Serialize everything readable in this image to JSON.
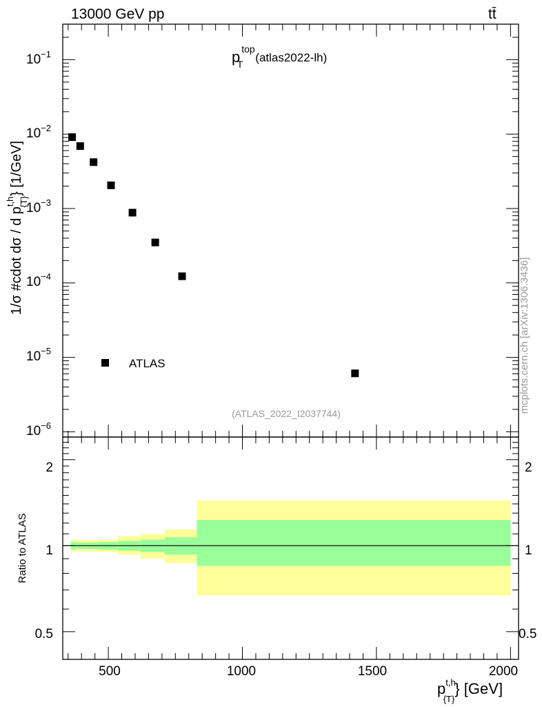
{
  "header": {
    "energy_label": "13000 GeV pp",
    "process_label": "tt̄",
    "side_label": "mcplots.cern.ch [arXiv:1306.3436]"
  },
  "main_plot": {
    "title_main": "p",
    "title_sup": "top",
    "title_sub": "T",
    "title_tag": "(atlas2022-lh)",
    "ylabel_pre": "1/σ #cdot dσ / d p",
    "ylabel_sup": "t,h",
    "ylabel_sub": "{T}",
    "ylabel_post": "} [1/GeV]",
    "analysis_label": "(ATLAS_2022_I2037744)",
    "legend_label": "ATLAS",
    "ytick_labels": [
      {
        "base": "10",
        "exp": "−1"
      },
      {
        "base": "10",
        "exp": "−2"
      },
      {
        "base": "10",
        "exp": "−3"
      },
      {
        "base": "10",
        "exp": "−4"
      },
      {
        "base": "10",
        "exp": "−5"
      },
      {
        "base": "10",
        "exp": "−6"
      }
    ]
  },
  "ratio_plot": {
    "ylabel": "Ratio to ATLAS",
    "ytick_labels_left": [
      "2",
      "1",
      "0.5"
    ],
    "ytick_labels_right": [
      "2",
      "1",
      "0.5"
    ]
  },
  "x_axis": {
    "tick_labels": [
      "500",
      "1000",
      "1500",
      "2000"
    ],
    "label_main": "p",
    "label_sup": "t,h",
    "label_sub": "{T}",
    "label_post": "} [GeV]"
  },
  "chart_data": {
    "type": "scatter",
    "xlabel": "p{T}t,h} [GeV]",
    "ylabel": "1/σ #cdot dσ / d p{T}t,h} [1/GeV]",
    "xlim": [
      330,
      2030
    ],
    "ylim": [
      8.5e-07,
      0.3
    ],
    "yscale": "log",
    "series": [
      {
        "name": "ATLAS",
        "color": "#000000",
        "marker": "square",
        "x": [
          365,
          395,
          445,
          510,
          590,
          675,
          775,
          1420
        ],
        "y": [
          0.0091,
          0.0069,
          0.0042,
          0.00205,
          0.00088,
          0.00035,
          0.000123,
          6.1e-06
        ]
      }
    ],
    "ratio": {
      "ylim": [
        0.4,
        2.4
      ],
      "yscale": "log",
      "bins": [
        {
          "x0": 360,
          "x1": 380,
          "inner": [
            0.97,
            1.03
          ],
          "outer": [
            0.95,
            1.05
          ]
        },
        {
          "x0": 380,
          "x1": 410,
          "inner": [
            0.975,
            1.025
          ],
          "outer": [
            0.955,
            1.045
          ]
        },
        {
          "x0": 410,
          "x1": 460,
          "inner": [
            0.975,
            1.025
          ],
          "outer": [
            0.955,
            1.045
          ]
        },
        {
          "x0": 460,
          "x1": 535,
          "inner": [
            0.97,
            1.03
          ],
          "outer": [
            0.95,
            1.05
          ]
        },
        {
          "x0": 535,
          "x1": 620,
          "inner": [
            0.96,
            1.04
          ],
          "outer": [
            0.93,
            1.08
          ]
        },
        {
          "x0": 620,
          "x1": 710,
          "inner": [
            0.95,
            1.05
          ],
          "outer": [
            0.9,
            1.1
          ]
        },
        {
          "x0": 710,
          "x1": 830,
          "inner": [
            0.93,
            1.07
          ],
          "outer": [
            0.87,
            1.14
          ]
        },
        {
          "x0": 830,
          "x1": 2000,
          "inner": [
            0.85,
            1.23
          ],
          "outer": [
            0.67,
            1.44
          ]
        }
      ],
      "inner_color": "#99ff99",
      "outer_color": "#ffff99",
      "reference": 1
    }
  }
}
